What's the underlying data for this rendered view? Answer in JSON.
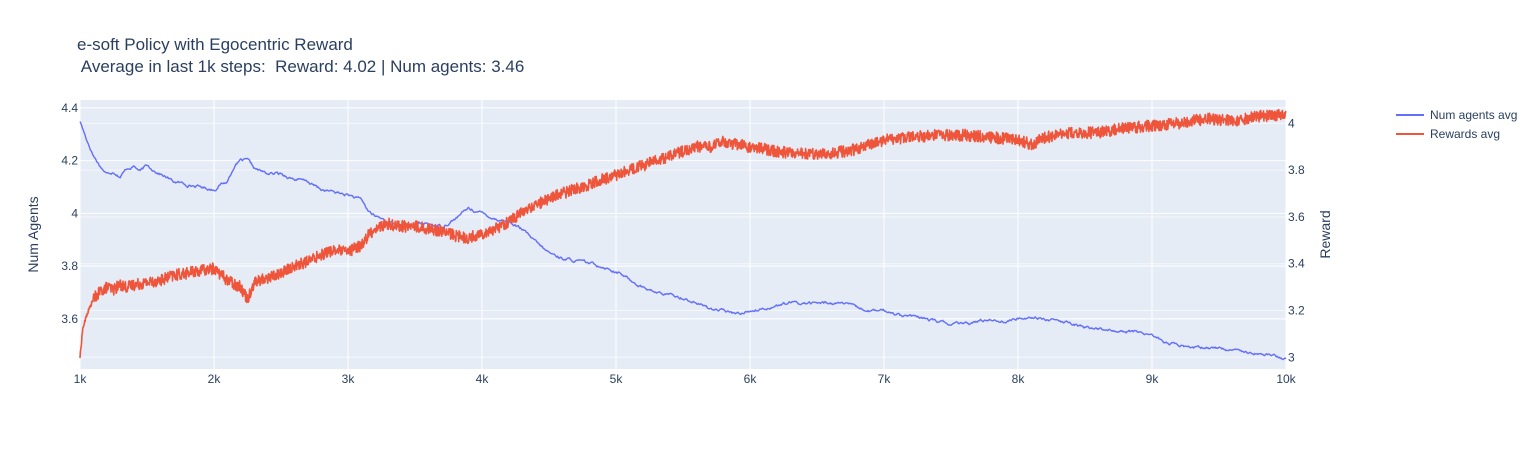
{
  "chart_data": {
    "type": "line",
    "title": "e-soft Policy with Egocentric Reward",
    "subtitle": " Average in last 1k steps:  Reward: 4.02 | Num agents: 3.46",
    "xlabel": "",
    "ylabel": "Num Agents",
    "y2label": "Reward",
    "xlim": [
      1000,
      10000
    ],
    "ylim": [
      3.41,
      4.43
    ],
    "y2lim": [
      2.95,
      4.1
    ],
    "x_ticks": [
      {
        "value": 1000,
        "label": "1k"
      },
      {
        "value": 2000,
        "label": "2k"
      },
      {
        "value": 3000,
        "label": "3k"
      },
      {
        "value": 4000,
        "label": "4k"
      },
      {
        "value": 5000,
        "label": "5k"
      },
      {
        "value": 6000,
        "label": "6k"
      },
      {
        "value": 7000,
        "label": "7k"
      },
      {
        "value": 8000,
        "label": "8k"
      },
      {
        "value": 9000,
        "label": "9k"
      },
      {
        "value": 10000,
        "label": "10k"
      }
    ],
    "y_ticks": [
      {
        "value": 3.6,
        "label": "3.6"
      },
      {
        "value": 3.8,
        "label": "3.8"
      },
      {
        "value": 4.0,
        "label": "4"
      },
      {
        "value": 4.2,
        "label": "4.2"
      },
      {
        "value": 4.4,
        "label": "4.4"
      }
    ],
    "y2_ticks": [
      {
        "value": 3.0,
        "label": "3"
      },
      {
        "value": 3.2,
        "label": "3.2"
      },
      {
        "value": 3.4,
        "label": "3.4"
      },
      {
        "value": 3.6,
        "label": "3.6"
      },
      {
        "value": 3.8,
        "label": "3.8"
      },
      {
        "value": 4.0,
        "label": "4"
      }
    ],
    "grid": true,
    "legend_position": "top-right",
    "series": [
      {
        "name": "Num agents avg",
        "axis": "y",
        "color": "#636efa",
        "x": [
          1000,
          1050,
          1100,
          1150,
          1200,
          1250,
          1300,
          1350,
          1400,
          1450,
          1500,
          1600,
          1700,
          1800,
          1900,
          2000,
          2050,
          2100,
          2150,
          2200,
          2250,
          2300,
          2400,
          2500,
          2600,
          2700,
          2800,
          2900,
          3000,
          3050,
          3100,
          3150,
          3200,
          3300,
          3400,
          3500,
          3600,
          3700,
          3800,
          3900,
          4000,
          4100,
          4200,
          4300,
          4400,
          4500,
          4600,
          4700,
          4800,
          4900,
          5000,
          5100,
          5200,
          5300,
          5400,
          5500,
          5600,
          5700,
          5800,
          5900,
          6000,
          6100,
          6200,
          6300,
          6400,
          6500,
          6600,
          6700,
          6800,
          6900,
          7000,
          7100,
          7200,
          7300,
          7400,
          7500,
          7600,
          7700,
          7800,
          7900,
          8000,
          8100,
          8200,
          8300,
          8400,
          8500,
          8600,
          8700,
          8800,
          8900,
          9000,
          9100,
          9200,
          9300,
          9400,
          9500,
          9600,
          9700,
          9800,
          9900,
          10000
        ],
        "values": [
          4.35,
          4.28,
          4.22,
          4.18,
          4.15,
          4.16,
          4.14,
          4.17,
          4.18,
          4.16,
          4.18,
          4.15,
          4.12,
          4.11,
          4.1,
          4.09,
          4.11,
          4.12,
          4.18,
          4.2,
          4.2,
          4.17,
          4.15,
          4.15,
          4.13,
          4.12,
          4.09,
          4.08,
          4.07,
          4.06,
          4.05,
          4.01,
          3.99,
          3.97,
          3.95,
          3.96,
          3.96,
          3.95,
          3.98,
          4.02,
          4.0,
          3.98,
          3.97,
          3.94,
          3.89,
          3.85,
          3.83,
          3.82,
          3.81,
          3.8,
          3.78,
          3.75,
          3.72,
          3.7,
          3.69,
          3.68,
          3.66,
          3.64,
          3.63,
          3.62,
          3.63,
          3.64,
          3.65,
          3.66,
          3.66,
          3.66,
          3.66,
          3.66,
          3.64,
          3.63,
          3.63,
          3.62,
          3.61,
          3.6,
          3.59,
          3.58,
          3.58,
          3.59,
          3.6,
          3.59,
          3.6,
          3.61,
          3.6,
          3.59,
          3.58,
          3.57,
          3.56,
          3.56,
          3.55,
          3.55,
          3.54,
          3.51,
          3.5,
          3.49,
          3.49,
          3.49,
          3.48,
          3.48,
          3.47,
          3.46,
          3.45
        ]
      },
      {
        "name": "Rewards avg",
        "axis": "y2",
        "color": "#ef553b",
        "x": [
          1000,
          1020,
          1050,
          1100,
          1150,
          1200,
          1250,
          1300,
          1350,
          1400,
          1500,
          1600,
          1700,
          1800,
          1900,
          2000,
          2100,
          2200,
          2250,
          2300,
          2400,
          2500,
          2600,
          2700,
          2800,
          2900,
          3000,
          3100,
          3150,
          3200,
          3300,
          3400,
          3500,
          3600,
          3700,
          3800,
          3900,
          4000,
          4100,
          4200,
          4300,
          4400,
          4500,
          4600,
          4700,
          4800,
          4900,
          5000,
          5100,
          5200,
          5300,
          5400,
          5500,
          5600,
          5700,
          5800,
          5900,
          6000,
          6200,
          6400,
          6600,
          6800,
          7000,
          7200,
          7400,
          7600,
          7800,
          8000,
          8100,
          8200,
          8400,
          8600,
          8800,
          9000,
          9200,
          9400,
          9600,
          9800,
          10000
        ],
        "values": [
          3.0,
          3.12,
          3.18,
          3.25,
          3.28,
          3.3,
          3.29,
          3.31,
          3.3,
          3.31,
          3.32,
          3.33,
          3.35,
          3.36,
          3.37,
          3.38,
          3.33,
          3.3,
          3.25,
          3.32,
          3.34,
          3.36,
          3.39,
          3.41,
          3.44,
          3.46,
          3.45,
          3.48,
          3.52,
          3.55,
          3.57,
          3.56,
          3.56,
          3.55,
          3.54,
          3.52,
          3.51,
          3.53,
          3.55,
          3.58,
          3.62,
          3.65,
          3.68,
          3.7,
          3.72,
          3.74,
          3.76,
          3.78,
          3.8,
          3.82,
          3.84,
          3.86,
          3.88,
          3.9,
          3.9,
          3.92,
          3.91,
          3.9,
          3.88,
          3.87,
          3.87,
          3.89,
          3.93,
          3.94,
          3.95,
          3.95,
          3.94,
          3.93,
          3.91,
          3.94,
          3.96,
          3.96,
          3.98,
          3.99,
          4.0,
          4.02,
          4.01,
          4.03,
          4.04
        ]
      }
    ]
  }
}
